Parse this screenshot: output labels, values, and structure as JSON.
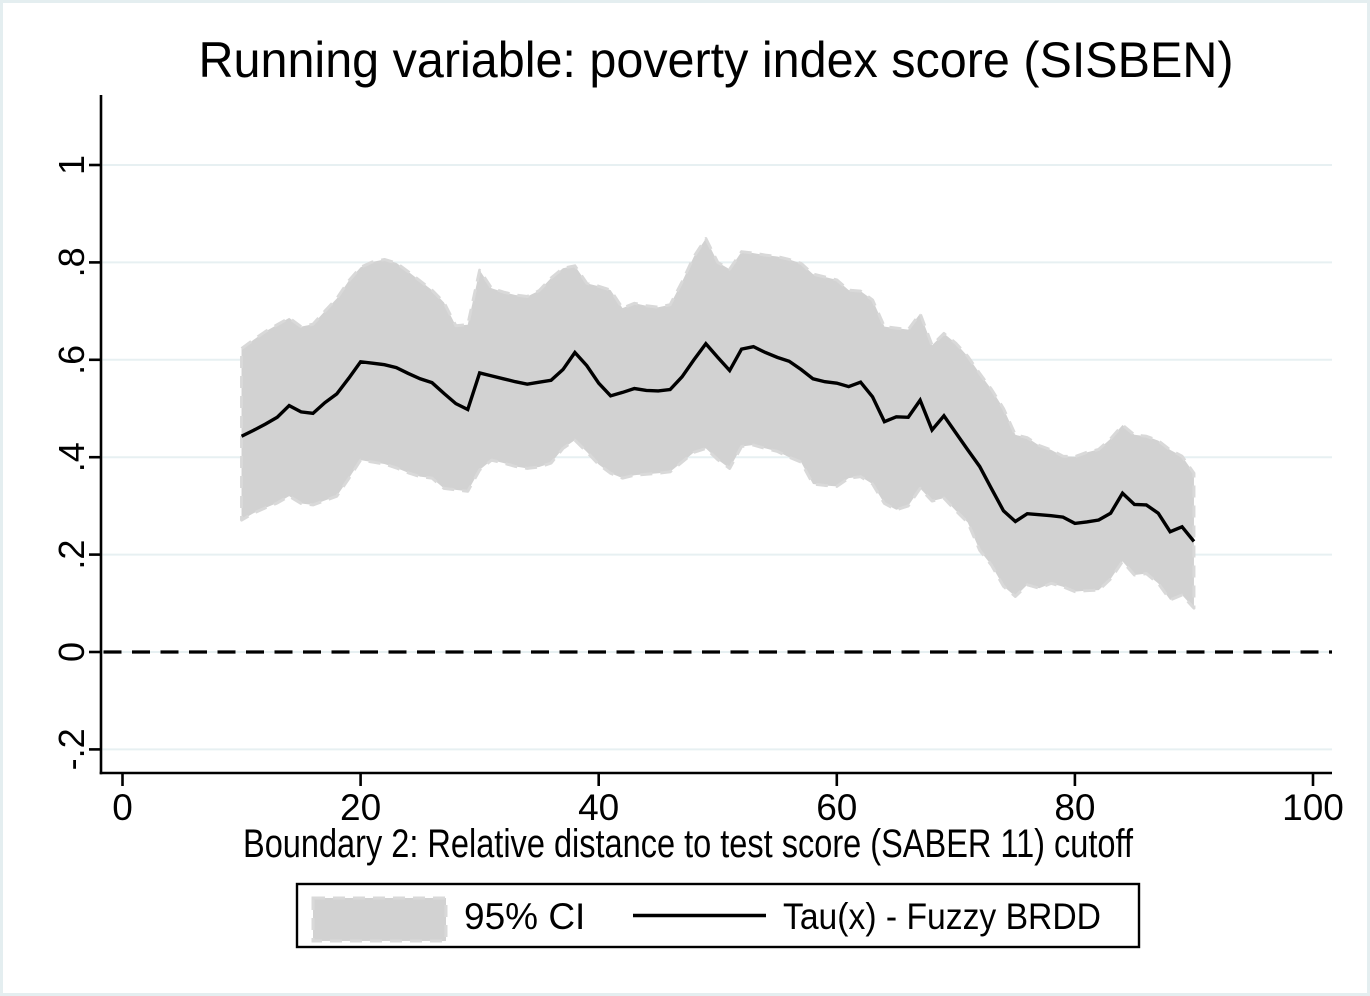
{
  "figure": {
    "background": "#ffffff",
    "border_color": "#e4eef0"
  },
  "chart_data": {
    "type": "line",
    "title": "Running variable: poverty index score (SISBEN)",
    "xlabel": "Boundary 2: Relative distance to test score (SABER 11) cutoff",
    "ylabel": "",
    "grid": true,
    "legend_position": "bottom",
    "xlim": [
      -1.8,
      101.6
    ],
    "ylim": [
      -0.248,
      1.144
    ],
    "x_ticks": [
      0,
      20,
      40,
      60,
      80,
      100
    ],
    "y_ticks": [
      {
        "value": 1,
        "label": "1"
      },
      {
        "value": 0.8,
        "label": ".8"
      },
      {
        "value": 0.6,
        "label": ".6"
      },
      {
        "value": 0.4,
        "label": ".4"
      },
      {
        "value": 0.2,
        "label": ".2"
      },
      {
        "value": 0,
        "label": "0"
      },
      {
        "value": -0.2,
        "label": "-.2"
      }
    ],
    "zero_line": {
      "y": 0,
      "style": "dashed",
      "color": "#000000"
    },
    "colors": {
      "grid": "#e7f0f2",
      "axis": "#000000",
      "line": "#000000",
      "band_fill": "#d2d2d2",
      "band_edge": "#d9d9d9"
    },
    "x": [
      10,
      11,
      12,
      13,
      14,
      15,
      16,
      17,
      18,
      19,
      20,
      21,
      22,
      23,
      24,
      25,
      26,
      27,
      28,
      29,
      30,
      31,
      32,
      33,
      34,
      35,
      36,
      37,
      38,
      39,
      40,
      41,
      42,
      43,
      44,
      45,
      46,
      47,
      48,
      49,
      50,
      51,
      52,
      53,
      54,
      55,
      56,
      57,
      58,
      59,
      60,
      61,
      62,
      63,
      64,
      65,
      66,
      67,
      68,
      69,
      70,
      71,
      72,
      73,
      74,
      75,
      76,
      77,
      78,
      79,
      80,
      81,
      82,
      83,
      84,
      85,
      86,
      87,
      88,
      89,
      90
    ],
    "series": [
      {
        "name": "Tau(x) - Fuzzy BRDD",
        "type": "line",
        "values": [
          0.443,
          0.455,
          0.468,
          0.482,
          0.506,
          0.493,
          0.49,
          0.512,
          0.53,
          0.562,
          0.596,
          0.593,
          0.59,
          0.584,
          0.572,
          0.561,
          0.553,
          0.531,
          0.51,
          0.498,
          0.573,
          0.567,
          0.561,
          0.555,
          0.55,
          0.554,
          0.558,
          0.58,
          0.615,
          0.588,
          0.552,
          0.526,
          0.533,
          0.541,
          0.537,
          0.536,
          0.539,
          0.565,
          0.6,
          0.633,
          0.605,
          0.578,
          0.622,
          0.627,
          0.615,
          0.605,
          0.597,
          0.58,
          0.561,
          0.555,
          0.552,
          0.545,
          0.554,
          0.524,
          0.473,
          0.483,
          0.482,
          0.517,
          0.456,
          0.485,
          0.45,
          0.415,
          0.381,
          0.335,
          0.29,
          0.268,
          0.284,
          0.282,
          0.28,
          0.277,
          0.264,
          0.267,
          0.271,
          0.285,
          0.326,
          0.303,
          0.302,
          0.285,
          0.247,
          0.257,
          0.227
        ]
      },
      {
        "name": "95% CI",
        "type": "band",
        "lower": [
          0.271,
          0.285,
          0.296,
          0.306,
          0.32,
          0.305,
          0.302,
          0.311,
          0.32,
          0.356,
          0.394,
          0.39,
          0.386,
          0.378,
          0.368,
          0.36,
          0.357,
          0.336,
          0.333,
          0.33,
          0.374,
          0.394,
          0.388,
          0.381,
          0.377,
          0.38,
          0.388,
          0.418,
          0.435,
          0.411,
          0.385,
          0.367,
          0.357,
          0.363,
          0.365,
          0.367,
          0.37,
          0.39,
          0.41,
          0.418,
          0.395,
          0.377,
          0.422,
          0.425,
          0.418,
          0.412,
          0.4,
          0.39,
          0.345,
          0.342,
          0.34,
          0.357,
          0.36,
          0.345,
          0.305,
          0.292,
          0.3,
          0.336,
          0.31,
          0.316,
          0.29,
          0.266,
          0.209,
          0.178,
          0.135,
          0.114,
          0.138,
          0.131,
          0.141,
          0.134,
          0.124,
          0.126,
          0.127,
          0.15,
          0.186,
          0.158,
          0.161,
          0.141,
          0.107,
          0.117,
          0.09
        ],
        "upper": [
          0.623,
          0.641,
          0.658,
          0.672,
          0.686,
          0.668,
          0.673,
          0.7,
          0.726,
          0.762,
          0.79,
          0.801,
          0.806,
          0.799,
          0.781,
          0.762,
          0.743,
          0.718,
          0.67,
          0.672,
          0.784,
          0.747,
          0.739,
          0.733,
          0.73,
          0.742,
          0.768,
          0.788,
          0.793,
          0.757,
          0.751,
          0.743,
          0.706,
          0.716,
          0.711,
          0.708,
          0.713,
          0.76,
          0.812,
          0.849,
          0.8,
          0.786,
          0.822,
          0.819,
          0.815,
          0.812,
          0.806,
          0.798,
          0.776,
          0.77,
          0.764,
          0.743,
          0.741,
          0.723,
          0.668,
          0.665,
          0.662,
          0.695,
          0.63,
          0.654,
          0.634,
          0.607,
          0.572,
          0.539,
          0.5,
          0.446,
          0.44,
          0.424,
          0.415,
          0.402,
          0.401,
          0.41,
          0.416,
          0.438,
          0.466,
          0.446,
          0.443,
          0.434,
          0.415,
          0.402,
          0.367
        ]
      }
    ],
    "legend": {
      "items": [
        {
          "label": "95% CI",
          "swatch": "band"
        },
        {
          "label": "Tau(x) - Fuzzy BRDD",
          "swatch": "line"
        }
      ]
    }
  }
}
